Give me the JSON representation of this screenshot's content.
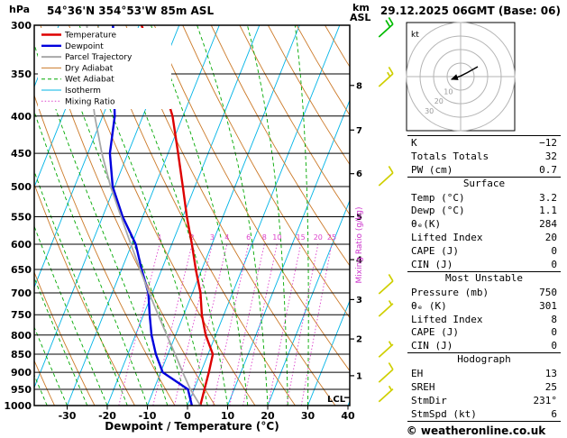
{
  "header": {
    "pressure_axis_unit": "hPa",
    "station_title": "54°36'N 354°53'W 85m ASL",
    "altitude_axis_unit": "km",
    "altitude_axis_unit2": "ASL",
    "run_datetime": "29.12.2025 06GMT (Base: 06)"
  },
  "legend": {
    "items": [
      {
        "label": "Temperature",
        "color": "#dd0000",
        "style": "solid",
        "width": 2.4
      },
      {
        "label": "Dewpoint",
        "color": "#0000dd",
        "style": "solid",
        "width": 2.4
      },
      {
        "label": "Parcel Trajectory",
        "color": "#a8a8a8",
        "style": "solid",
        "width": 2
      },
      {
        "label": "Dry Adiabat",
        "color": "#cc7a29",
        "style": "solid",
        "width": 1
      },
      {
        "label": "Wet Adiabat",
        "color": "#00a800",
        "style": "dashed",
        "width": 1
      },
      {
        "label": "Isotherm",
        "color": "#00b4e6",
        "style": "solid",
        "width": 1
      },
      {
        "label": "Mixing Ratio",
        "color": "#dd44cc",
        "style": "dotted",
        "width": 1
      }
    ]
  },
  "chart_data": {
    "type": "line",
    "variant": "skew-t-log-p",
    "title": "54°36'N 354°53'W 85m ASL",
    "xlabel": "Dewpoint / Temperature (°C)",
    "x_ticks": [
      -30,
      -20,
      -10,
      0,
      10,
      20,
      30,
      40
    ],
    "pressure_ticks_hpa": [
      300,
      350,
      400,
      450,
      500,
      550,
      600,
      650,
      700,
      750,
      800,
      850,
      900,
      950,
      1000
    ],
    "km_asl_ticks": [
      1,
      2,
      3,
      4,
      5,
      6,
      7,
      8
    ],
    "mixing_ratio_lines_g_kg": [
      1,
      2,
      3,
      4,
      6,
      8,
      10,
      15,
      20,
      25
    ],
    "mixing_ratio_axis_label": "Mixing Ratio (g/kg)",
    "isotherm_step_c": 10,
    "dry_adiabat_step_k": 10,
    "wet_adiabat_step_c": 5,
    "lcl": {
      "label": "LCL",
      "pressure_hpa": 975
    },
    "series": [
      {
        "name": "Temperature",
        "color": "#dd0000",
        "points_p_t": [
          [
            1000,
            3.2
          ],
          [
            950,
            2.6
          ],
          [
            900,
            2.0
          ],
          [
            850,
            1.2
          ],
          [
            800,
            -2.5
          ],
          [
            750,
            -5.5
          ],
          [
            700,
            -8.0
          ],
          [
            650,
            -11.5
          ],
          [
            600,
            -15.0
          ],
          [
            550,
            -19.0
          ],
          [
            500,
            -23.0
          ],
          [
            450,
            -27.5
          ],
          [
            400,
            -32.6
          ],
          [
            350,
            -40.0
          ],
          [
            300,
            -49.4
          ]
        ]
      },
      {
        "name": "Dewpoint",
        "color": "#0000dd",
        "points_p_t": [
          [
            1000,
            1.1
          ],
          [
            950,
            -1.5
          ],
          [
            900,
            -9.5
          ],
          [
            850,
            -13.0
          ],
          [
            800,
            -16.0
          ],
          [
            750,
            -18.5
          ],
          [
            700,
            -21.0
          ],
          [
            650,
            -25.0
          ],
          [
            600,
            -29.0
          ],
          [
            550,
            -35.0
          ],
          [
            500,
            -40.5
          ],
          [
            450,
            -44.5
          ],
          [
            400,
            -47.0
          ],
          [
            350,
            -51.5
          ],
          [
            300,
            -56.5
          ]
        ]
      },
      {
        "name": "Parcel Trajectory",
        "color": "#a8a8a8",
        "points_p_t": [
          [
            1000,
            3.2
          ],
          [
            950,
            -0.9
          ],
          [
            900,
            -4.5
          ],
          [
            850,
            -8.2
          ],
          [
            800,
            -12.2
          ],
          [
            750,
            -16.4
          ],
          [
            700,
            -20.8
          ],
          [
            650,
            -25.4
          ],
          [
            600,
            -30.2
          ],
          [
            550,
            -35.4
          ],
          [
            500,
            -41.0
          ],
          [
            450,
            -46.5
          ],
          [
            400,
            -52.0
          ],
          [
            350,
            -57.5
          ],
          [
            300,
            -63.0
          ]
        ]
      }
    ],
    "colors": {
      "isotherm": "#00b4e6",
      "dry_adiabat": "#cc7a29",
      "wet_adiabat": "#00a800",
      "mixing_ratio": "#dd44cc",
      "pressure_line": "#000000"
    }
  },
  "wind_profile": {
    "barbs": [
      {
        "pressure_hpa": 306,
        "speed_kt": 20,
        "color": "#00bb00"
      },
      {
        "pressure_hpa": 358,
        "speed_kt": 15,
        "color": "#cfcf00"
      },
      {
        "pressure_hpa": 490,
        "speed_kt": 10,
        "color": "#cfcf00"
      },
      {
        "pressure_hpa": 690,
        "speed_kt": 10,
        "color": "#cfcf00"
      },
      {
        "pressure_hpa": 741,
        "speed_kt": 5,
        "color": "#cfcf00"
      },
      {
        "pressure_hpa": 843,
        "speed_kt": 5,
        "color": "#cfcf00"
      },
      {
        "pressure_hpa": 913,
        "speed_kt": 10,
        "color": "#cfcf00"
      },
      {
        "pressure_hpa": 971,
        "speed_kt": 5,
        "color": "#cfcf00"
      }
    ]
  },
  "hodograph": {
    "unit_label": "kt",
    "rings_kt": [
      10,
      20,
      30,
      40
    ],
    "ring_labels": [
      "10",
      "20",
      "30"
    ],
    "trace_uv_kt": [
      [
        12.7,
        7.3
      ],
      [
        5,
        3
      ],
      [
        0,
        0.5
      ],
      [
        -6.7,
        -2
      ]
    ]
  },
  "table": {
    "sections": [
      {
        "header": null,
        "rows": [
          {
            "label": "K",
            "value": "−12"
          },
          {
            "label": "Totals Totals",
            "value": "32"
          },
          {
            "label": "PW (cm)",
            "value": "0.7"
          }
        ]
      },
      {
        "header": "Surface",
        "rows": [
          {
            "label": "Temp (°C)",
            "value": "3.2"
          },
          {
            "label": "Dewp (°C)",
            "value": "1.1"
          },
          {
            "label": "θₑ(K)",
            "value": "284"
          },
          {
            "label": "Lifted Index",
            "value": "20"
          },
          {
            "label": "CAPE (J)",
            "value": "0"
          },
          {
            "label": "CIN (J)",
            "value": "0"
          }
        ]
      },
      {
        "header": "Most Unstable",
        "rows": [
          {
            "label": "Pressure (mb)",
            "value": "750"
          },
          {
            "label": "θₑ (K)",
            "value": "301"
          },
          {
            "label": "Lifted Index",
            "value": "8"
          },
          {
            "label": "CAPE (J)",
            "value": "0"
          },
          {
            "label": "CIN (J)",
            "value": "0"
          }
        ]
      },
      {
        "header": "Hodograph",
        "rows": [
          {
            "label": "EH",
            "value": "13"
          },
          {
            "label": "SREH",
            "value": "25"
          },
          {
            "label": "StmDir",
            "value": "231°"
          },
          {
            "label": "StmSpd (kt)",
            "value": "6"
          }
        ]
      }
    ]
  },
  "footer": {
    "credit": "© weatheronline.co.uk"
  }
}
